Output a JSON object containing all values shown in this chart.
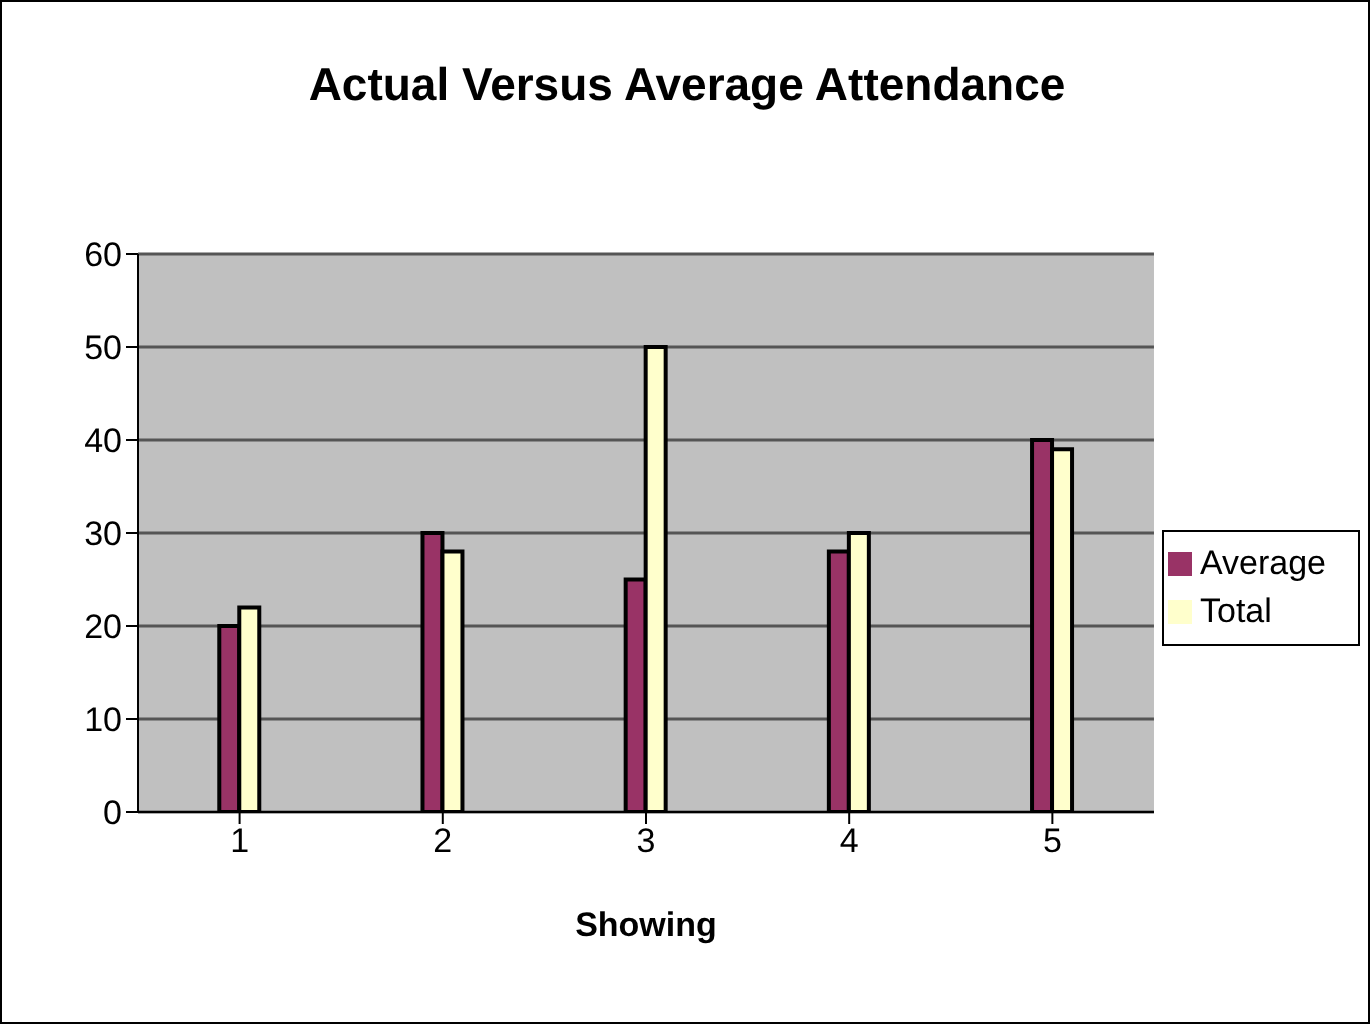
{
  "chart_data": {
    "type": "bar",
    "title": "Actual Versus Average Attendance",
    "xlabel": "Showing",
    "categories": [
      "1",
      "2",
      "3",
      "4",
      "5"
    ],
    "series": [
      {
        "name": "Average",
        "color": "#993366",
        "values": [
          20,
          30,
          25,
          28,
          40
        ]
      },
      {
        "name": "Total",
        "color": "#ffffcc",
        "values": [
          22,
          28,
          50,
          30,
          39
        ]
      }
    ],
    "ylim": [
      0,
      60
    ],
    "yticks": [
      0,
      10,
      20,
      30,
      40,
      50,
      60
    ],
    "grid": "y",
    "legend": "right"
  }
}
